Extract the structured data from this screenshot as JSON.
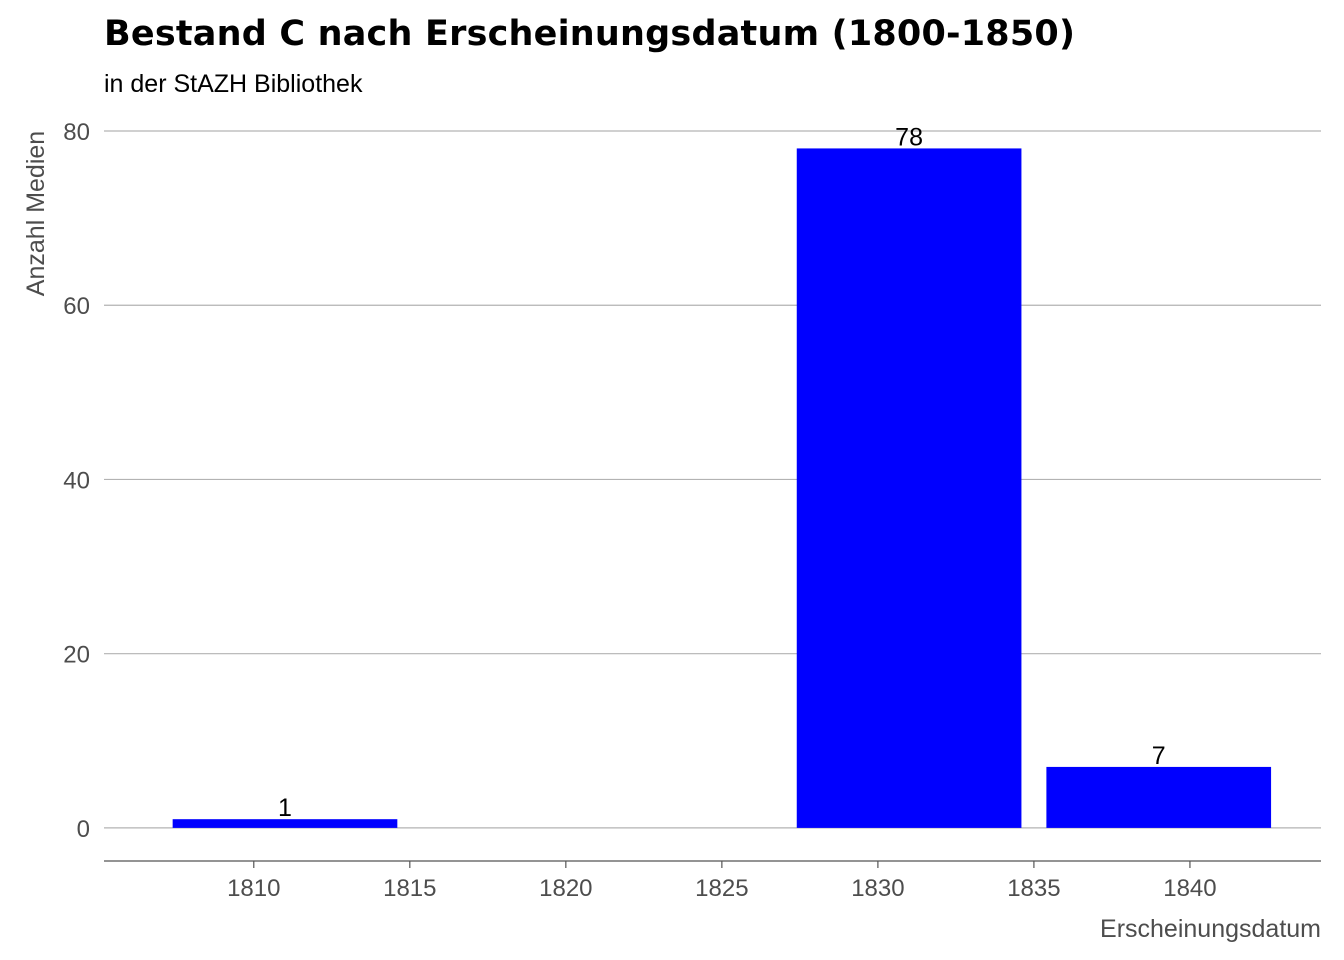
{
  "chart_data": {
    "type": "bar",
    "title": "Bestand C nach Erscheinungsdatum (1800-1850)",
    "subtitle": "in der StAZH Bibliothek",
    "xlabel": "Erscheinungsdatum",
    "ylabel": "Anzahl Medien",
    "x": [
      1811,
      1831,
      1839
    ],
    "values": [
      1,
      78,
      7
    ],
    "bin_width": 7.2,
    "xlim": [
      1805.2,
      1844.2
    ],
    "ylim": [
      -3.8,
      80
    ],
    "x_ticks": [
      1810,
      1815,
      1820,
      1825,
      1830,
      1835,
      1840
    ],
    "y_ticks": [
      0,
      20,
      40,
      60,
      80
    ],
    "bar_color": "#0000ff",
    "grid": "horizontal",
    "legend": "none"
  }
}
